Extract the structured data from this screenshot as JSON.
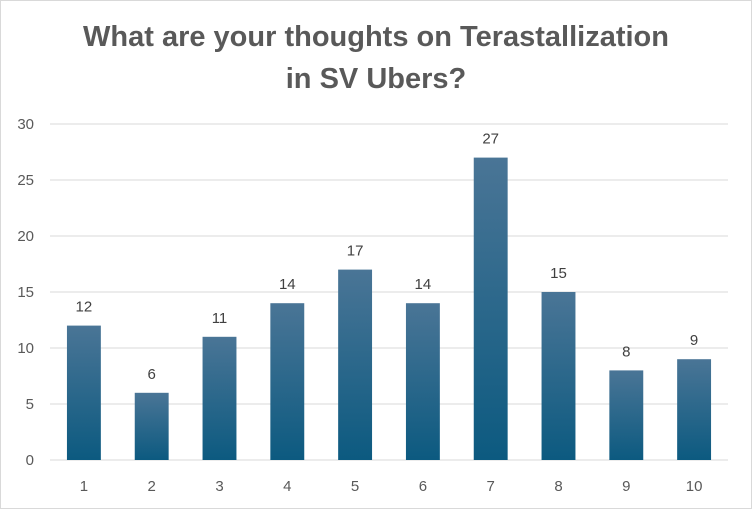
{
  "chart_data": {
    "type": "bar",
    "title": "What are your thoughts on Terastallization in SV Ubers?",
    "title_lines": [
      "What are your thoughts on Terastallization",
      "in SV Ubers?"
    ],
    "categories": [
      "1",
      "2",
      "3",
      "4",
      "5",
      "6",
      "7",
      "8",
      "9",
      "10"
    ],
    "values": [
      12,
      6,
      11,
      14,
      17,
      14,
      27,
      15,
      8,
      9
    ],
    "ylim": [
      0,
      30
    ],
    "yticks": [
      0,
      5,
      10,
      15,
      20,
      25,
      30
    ],
    "xlabel": "",
    "ylabel": "",
    "grid": true,
    "data_labels": true,
    "legend": "none",
    "bar_color_top": "#4a7596",
    "bar_color_bottom": "#0c5a80",
    "grid_color": "#d9d9d9",
    "text_color": "#595959"
  }
}
